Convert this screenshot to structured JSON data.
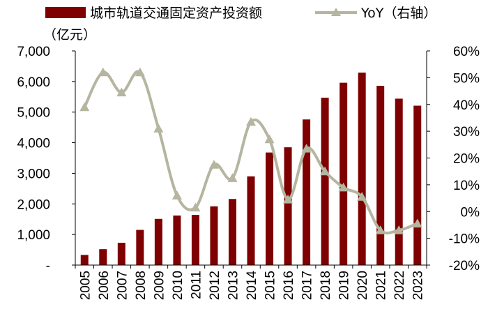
{
  "chart_data": {
    "type": "bar+line",
    "categories": [
      "2005",
      "2006",
      "2007",
      "2008",
      "2009",
      "2010",
      "2011",
      "2012",
      "2013",
      "2014",
      "2015",
      "2016",
      "2017",
      "2018",
      "2019",
      "2020",
      "2021",
      "2022",
      "2023"
    ],
    "series": [
      {
        "name": "城市轨道交通固定资产投资额",
        "type": "bar",
        "axis": "left",
        "color": "#7f0000",
        "values": [
          330,
          520,
          730,
          1150,
          1510,
          1620,
          1640,
          1920,
          2160,
          2900,
          3680,
          3850,
          4760,
          5470,
          5960,
          6290,
          5860,
          5440,
          5210
        ]
      },
      {
        "name": "YoY（右轴）",
        "type": "line",
        "axis": "right",
        "color": "#b5b5a0",
        "marker": "triangle",
        "values": [
          39,
          52,
          44.5,
          52,
          31,
          6,
          1.5,
          17.5,
          12.5,
          33.5,
          27,
          4.5,
          23.5,
          15,
          9,
          5.5,
          -7,
          -7,
          -4.5
        ]
      }
    ],
    "unit_label": "（亿元）",
    "y_left": {
      "ylim": [
        0,
        7000
      ],
      "ticks": [
        "-",
        "1,000",
        "2,000",
        "3,000",
        "4,000",
        "5,000",
        "6,000",
        "7,000"
      ],
      "tick_values": [
        0,
        1000,
        2000,
        3000,
        4000,
        5000,
        6000,
        7000
      ]
    },
    "y_right": {
      "ylim": [
        -20,
        60
      ],
      "ticks": [
        "-20%",
        "-10%",
        "0%",
        "10%",
        "20%",
        "30%",
        "40%",
        "50%",
        "60%"
      ],
      "tick_values": [
        -20,
        -10,
        0,
        10,
        20,
        30,
        40,
        50,
        60
      ]
    },
    "grid": false,
    "legend_position": "top"
  }
}
